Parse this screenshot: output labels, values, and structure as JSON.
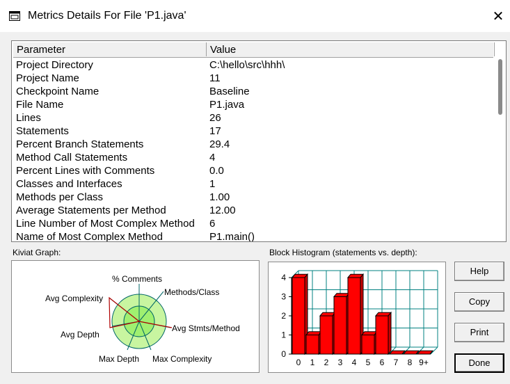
{
  "window": {
    "title": "Metrics Details For File 'P1.java'",
    "close_glyph": "✕"
  },
  "table": {
    "headers": [
      "Parameter",
      "Value"
    ],
    "rows": [
      [
        "Project Directory",
        "C:\\hello\\src\\hhh\\"
      ],
      [
        "Project Name",
        "11"
      ],
      [
        "Checkpoint Name",
        "Baseline"
      ],
      [
        "File Name",
        "P1.java"
      ],
      [
        "Lines",
        "26"
      ],
      [
        "Statements",
        "17"
      ],
      [
        "Percent Branch Statements",
        "29.4"
      ],
      [
        "Method Call Statements",
        "4"
      ],
      [
        "Percent Lines with Comments",
        "0.0"
      ],
      [
        "Classes and Interfaces",
        "1"
      ],
      [
        "Methods per Class",
        "1.00"
      ],
      [
        "Average Statements per Method",
        "12.00"
      ],
      [
        "Line Number of Most Complex Method",
        "6"
      ],
      [
        "Name of Most Complex Method",
        "P1.main()"
      ]
    ]
  },
  "kiviat": {
    "label": "Kiviat Graph:",
    "axes": [
      "% Comments",
      "Methods/Class",
      "Avg Stmts/Method",
      "Max Complexity",
      "Max Depth",
      "Avg Depth",
      "Avg Complexity"
    ]
  },
  "histogram": {
    "label": "Block Histogram (statements vs. depth):",
    "y_ticks": [
      "4",
      "3",
      "2",
      "1",
      "0"
    ],
    "categories": [
      "0",
      "1",
      "2",
      "3",
      "4",
      "5",
      "6",
      "7",
      "8",
      "9+"
    ],
    "values": [
      4,
      1,
      2,
      3,
      4,
      1,
      2,
      0,
      0,
      0
    ],
    "ylim": [
      0,
      4
    ],
    "bar_color": "#ff0000",
    "grid_color": "#008080"
  },
  "buttons": {
    "help": "Help",
    "copy": "Copy",
    "print": "Print",
    "done": "Done"
  },
  "colors": {
    "kiviat_band": "#c8f5a0",
    "kiviat_inner": "#a0f070",
    "axis": "#006666",
    "value_line": "#b00000"
  }
}
